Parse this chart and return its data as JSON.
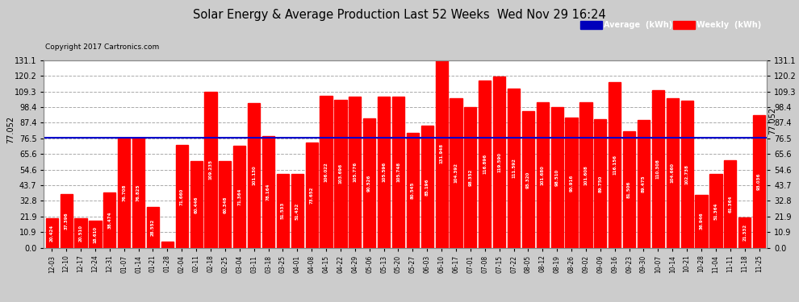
{
  "title": "Solar Energy & Average Production Last 52 Weeks  Wed Nov 29 16:24",
  "copyright": "Copyright 2017 Cartronics.com",
  "average_line": 77.052,
  "average_label": "77.052",
  "bar_color": "#ff0000",
  "average_line_color": "#0000cc",
  "background_color": "#cccccc",
  "plot_bg_color": "#ffffff",
  "grid_color": "#aaaaaa",
  "ylim": [
    0.0,
    131.1
  ],
  "yticks": [
    0.0,
    10.9,
    21.9,
    32.8,
    43.7,
    54.6,
    65.6,
    76.5,
    87.4,
    98.4,
    109.3,
    120.2,
    131.1
  ],
  "legend_avg_color": "#0000bb",
  "legend_weekly_color": "#ff0000",
  "categories": [
    "12-03",
    "12-10",
    "12-17",
    "12-24",
    "12-31",
    "01-07",
    "01-14",
    "01-21",
    "01-28",
    "02-04",
    "02-11",
    "02-18",
    "02-25",
    "03-04",
    "03-11",
    "03-18",
    "03-25",
    "04-01",
    "04-08",
    "04-15",
    "04-22",
    "04-29",
    "05-06",
    "05-13",
    "05-20",
    "05-27",
    "06-03",
    "06-10",
    "06-17",
    "07-01",
    "07-08",
    "07-15",
    "07-22",
    "08-05",
    "08-12",
    "08-19",
    "08-26",
    "09-02",
    "09-09",
    "09-16",
    "09-23",
    "09-30",
    "10-07",
    "10-14",
    "10-21",
    "10-28",
    "11-04",
    "11-11",
    "11-18",
    "11-25"
  ],
  "values": [
    20.424,
    37.396,
    20.51,
    18.61,
    38.474,
    76.708,
    76.825,
    28.552,
    4.312,
    71.66,
    60.446,
    109.235,
    60.348,
    71.364,
    101.13,
    78.164,
    51.533,
    51.432,
    73.652,
    106.022,
    103.696,
    105.776,
    90.526,
    105.596,
    105.748,
    80.545,
    85.196,
    131.948,
    104.392,
    98.352,
    116.896,
    119.59,
    111.592,
    95.32,
    101.68,
    98.51,
    90.916,
    101.608,
    89.75,
    116.156,
    81.506,
    89.475,
    110.308,
    104.66,
    102.738,
    36.946,
    51.364,
    61.364,
    21.332,
    93.036
  ]
}
